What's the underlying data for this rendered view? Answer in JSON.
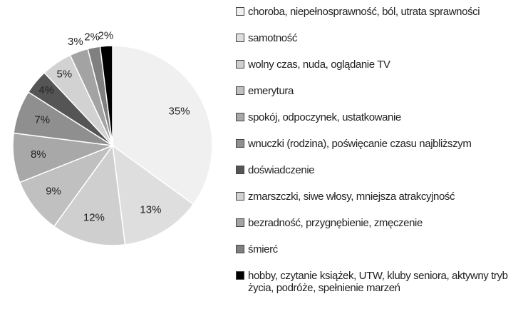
{
  "chart_data": {
    "type": "pie",
    "categories": [
      "choroba, niepełnosprawność, ból, utrata sprawności",
      "samotność",
      "wolny czas, nuda, oglądanie TV",
      "emerytura",
      "spokój, odpoczynek, ustatkowanie",
      "wnuczki (rodzina), poświęcanie czasu najbliższym",
      "doświadczenie",
      "zmarszczki, siwe włosy, mniejsza atrakcyjność",
      "bezradność, przygnębienie, zmęczenie",
      "śmierć",
      "hobby, czytanie książek, UTW, kluby seniora, aktywny tryb życia, podróże, spełnienie marzeń"
    ],
    "values": [
      35,
      13,
      12,
      9,
      8,
      7,
      4,
      5,
      3,
      2,
      2
    ],
    "value_labels": [
      "35%",
      "13%",
      "12%",
      "9%",
      "8%",
      "7%",
      "4%",
      "5%",
      "3%",
      "2%",
      "2%"
    ],
    "colors": [
      "#f0f0f0",
      "#dedede",
      "#cfcfcf",
      "#c0c0c0",
      "#a8a8a8",
      "#8f8f8f",
      "#555555",
      "#d2d2d2",
      "#a3a3a3",
      "#808080",
      "#000000"
    ],
    "legend": "right"
  }
}
